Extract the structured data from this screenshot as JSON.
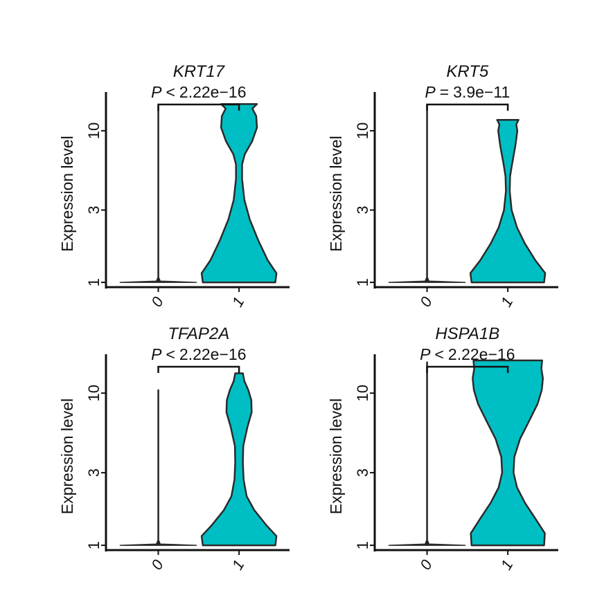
{
  "chart_data": [
    {
      "type": "violin",
      "title": "KRT17",
      "pvalue": {
        "symbol": "P",
        "operator": "<",
        "value": "2.22e−16"
      },
      "ylabel": "Expression level",
      "yscale": "log",
      "yticks": [
        {
          "value": 1,
          "label": "1"
        },
        {
          "value": 3,
          "label": "3"
        },
        {
          "value": 10,
          "label": "10"
        }
      ],
      "ylim": [
        0.93,
        18
      ],
      "categories": [
        "0",
        "1"
      ],
      "color": "#00BFC4",
      "series": [
        {
          "category": "0",
          "max": 14.5,
          "profile": [
            [
              1.0,
              1.0
            ],
            [
              1.02,
              0.05
            ],
            [
              1.08,
              0.01
            ],
            [
              14.5,
              0.01
            ]
          ]
        },
        {
          "category": "1",
          "max": 15,
          "profile": [
            [
              1.0,
              0.95
            ],
            [
              1.15,
              0.98
            ],
            [
              1.4,
              0.75
            ],
            [
              1.9,
              0.5
            ],
            [
              2.6,
              0.28
            ],
            [
              3.5,
              0.14
            ],
            [
              4.8,
              0.08
            ],
            [
              6.0,
              0.08
            ],
            [
              7.0,
              0.15
            ],
            [
              8.5,
              0.34
            ],
            [
              10.5,
              0.47
            ],
            [
              12.5,
              0.45
            ],
            [
              14.0,
              0.35
            ],
            [
              15.0,
              0.47
            ]
          ]
        }
      ]
    },
    {
      "type": "violin",
      "title": "KRT5",
      "pvalue": {
        "symbol": "P",
        "operator": "=",
        "value": "3.9e−11"
      },
      "ylabel": "Expression level",
      "yscale": "log",
      "yticks": [
        {
          "value": 1,
          "label": "1"
        },
        {
          "value": 3,
          "label": "3"
        },
        {
          "value": 10,
          "label": "10"
        }
      ],
      "ylim": [
        0.93,
        18
      ],
      "categories": [
        "0",
        "1"
      ],
      "color": "#00BFC4",
      "series": [
        {
          "category": "0",
          "max": 14.8,
          "profile": [
            [
              1.0,
              1.0
            ],
            [
              1.02,
              0.05
            ],
            [
              1.08,
              0.01
            ],
            [
              14.8,
              0.01
            ]
          ]
        },
        {
          "category": "1",
          "max": 11.8,
          "profile": [
            [
              1.0,
              0.95
            ],
            [
              1.15,
              0.98
            ],
            [
              1.4,
              0.72
            ],
            [
              1.8,
              0.45
            ],
            [
              2.3,
              0.24
            ],
            [
              3.0,
              0.1
            ],
            [
              4.0,
              0.05
            ],
            [
              5.0,
              0.06
            ],
            [
              6.0,
              0.11
            ],
            [
              8.0,
              0.2
            ],
            [
              10.0,
              0.25
            ],
            [
              11.0,
              0.22
            ],
            [
              11.8,
              0.28
            ]
          ]
        }
      ]
    },
    {
      "type": "violin",
      "title": "TFAP2A",
      "pvalue": {
        "symbol": "P",
        "operator": "<",
        "value": "2.22e−16"
      },
      "ylabel": "Expression level",
      "yscale": "log",
      "yticks": [
        {
          "value": 1,
          "label": "1"
        },
        {
          "value": 3,
          "label": "3"
        },
        {
          "value": 10,
          "label": "10"
        }
      ],
      "ylim": [
        0.93,
        18
      ],
      "categories": [
        "0",
        "1"
      ],
      "color": "#00BFC4",
      "series": [
        {
          "category": "0",
          "max": 10.5,
          "profile": [
            [
              1.0,
              1.0
            ],
            [
              1.02,
              0.05
            ],
            [
              1.08,
              0.01
            ],
            [
              10.5,
              0.01
            ]
          ]
        },
        {
          "category": "1",
          "max": 13.5,
          "profile": [
            [
              1.0,
              0.95
            ],
            [
              1.15,
              0.98
            ],
            [
              1.35,
              0.72
            ],
            [
              1.7,
              0.4
            ],
            [
              2.1,
              0.2
            ],
            [
              2.7,
              0.12
            ],
            [
              3.5,
              0.1
            ],
            [
              4.5,
              0.11
            ],
            [
              6.0,
              0.22
            ],
            [
              7.5,
              0.33
            ],
            [
              9.0,
              0.32
            ],
            [
              10.5,
              0.24
            ],
            [
              12.0,
              0.14
            ],
            [
              13.5,
              0.1
            ]
          ]
        }
      ]
    },
    {
      "type": "violin",
      "title": "HSPA1B",
      "pvalue": {
        "symbol": "P",
        "operator": "<",
        "value": "2.22e−16"
      },
      "ylabel": "Expression level",
      "yscale": "log",
      "yticks": [
        {
          "value": 1,
          "label": "1"
        },
        {
          "value": 3,
          "label": "3"
        },
        {
          "value": 10,
          "label": "10"
        }
      ],
      "ylim": [
        0.93,
        18
      ],
      "categories": [
        "0",
        "1"
      ],
      "color": "#00BFC4",
      "series": [
        {
          "category": "0",
          "max": 16,
          "profile": [
            [
              1.0,
              1.0
            ],
            [
              1.02,
              0.05
            ],
            [
              1.08,
              0.01
            ],
            [
              16.0,
              0.01
            ]
          ]
        },
        {
          "category": "1",
          "max": 16.4,
          "profile": [
            [
              1.0,
              0.95
            ],
            [
              1.2,
              0.97
            ],
            [
              1.5,
              0.72
            ],
            [
              1.9,
              0.45
            ],
            [
              2.4,
              0.24
            ],
            [
              3.0,
              0.15
            ],
            [
              3.8,
              0.17
            ],
            [
              5.0,
              0.32
            ],
            [
              6.5,
              0.55
            ],
            [
              8.5,
              0.78
            ],
            [
              10.5,
              0.89
            ],
            [
              12.5,
              0.92
            ],
            [
              14.5,
              0.88
            ],
            [
              16.4,
              0.9
            ]
          ]
        }
      ]
    }
  ]
}
